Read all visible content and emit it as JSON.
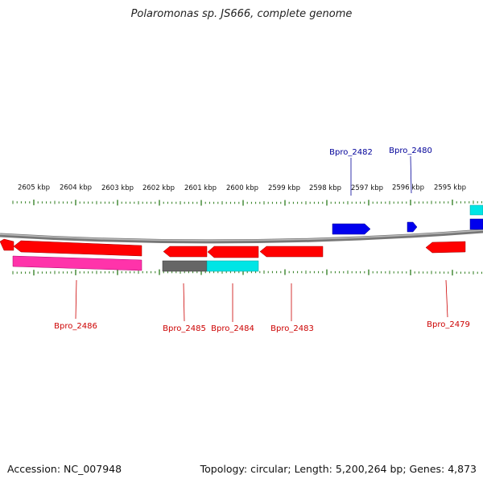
{
  "title": "Polaromonas sp. JS666, complete genome",
  "footer": {
    "accession": "Accession: NC_007948",
    "summary": "Topology: circular; Length: 5,200,264 bp; Genes: 4,873"
  },
  "colors": {
    "backbone": "#888888",
    "tick": "#2a7a1a",
    "gene_red": "#ff0000",
    "gene_blue": "#0000ff",
    "gene_magenta": "#ff33aa",
    "gene_cyan": "#00e5e5",
    "gene_gray": "#666666",
    "label_red": "#cc0000",
    "label_blue": "#000099"
  },
  "ruler": {
    "labels": [
      "2605 kbp",
      "2604 kbp",
      "2603 kbp",
      "2602 kbp",
      "2601 kbp",
      "2600 kbp",
      "2599 kbp",
      "2598 kbp",
      "2597 kbp",
      "2596 kbp",
      "2595 kbp"
    ]
  },
  "gene_labels": [
    {
      "id": "label-bpro-2482",
      "text": "Bpro_2482",
      "color": "blue"
    },
    {
      "id": "label-bpro-2480",
      "text": "Bpro_2480",
      "color": "blue"
    },
    {
      "id": "label-bpro-2486",
      "text": "Bpro_2486",
      "color": "red"
    },
    {
      "id": "label-bpro-2485",
      "text": "Bpro_2485",
      "color": "red"
    },
    {
      "id": "label-bpro-2484",
      "text": "Bpro_2484",
      "color": "red"
    },
    {
      "id": "label-bpro-2483",
      "text": "Bpro_2483",
      "color": "red"
    },
    {
      "id": "label-bpro-2479",
      "text": "Bpro_2479",
      "color": "red"
    }
  ]
}
